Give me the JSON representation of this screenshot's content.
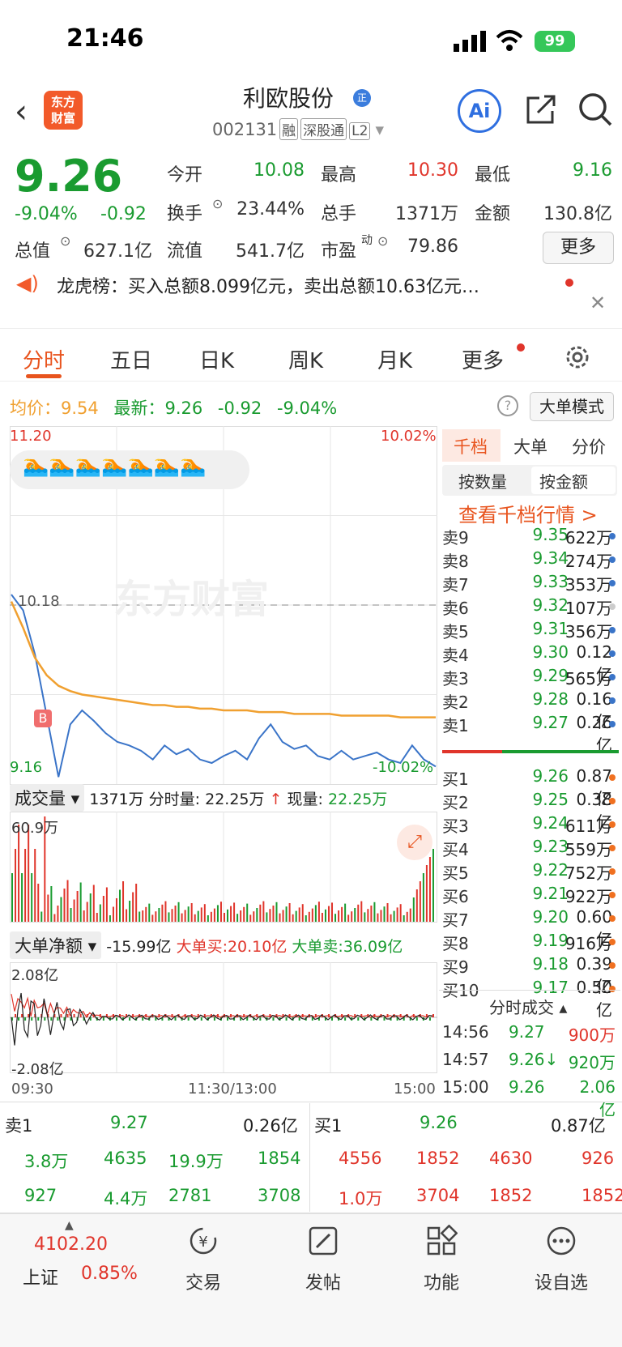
{
  "status": {
    "time": "21:46",
    "battery": "99"
  },
  "header": {
    "logo_line1": "东方",
    "logo_line2": "财富",
    "title": "利欧股份",
    "title_badge": "正",
    "code": "002131",
    "tags": [
      "融",
      "深股通",
      "L2"
    ],
    "ai_label": "Ai"
  },
  "quote": {
    "price": "9.26",
    "change_pct": "-9.04%",
    "change": "-0.92",
    "open_label": "今开",
    "open": "10.08",
    "high_label": "最高",
    "high": "10.30",
    "low_label": "最低",
    "low": "9.16",
    "turnover_label": "换手",
    "turnover": "23.44%",
    "volume_label": "总手",
    "volume": "1371万",
    "amount_label": "金额",
    "amount": "130.8亿",
    "mcap_label": "总值",
    "mcap": "627.1亿",
    "float_label": "流值",
    "float": "541.7亿",
    "pe_label": "市盈",
    "pe_sup": "动",
    "pe": "79.86",
    "more": "更多"
  },
  "notice": {
    "text": "龙虎榜：买入总额8.099亿元，卖出总额10.63亿元…"
  },
  "tabs": [
    "分时",
    "五日",
    "日K",
    "周K",
    "月K",
    "更多"
  ],
  "avg_line": {
    "avg_label": "均价：",
    "avg": "9.54",
    "latest_label": "最新：",
    "latest": "9.26",
    "chg": "-0.92",
    "pct": "-9.04%"
  },
  "big_mode": "大单模式",
  "chart_data": {
    "type": "line",
    "y_max_label": "11.20",
    "y_max_pct": "10.02%",
    "y_min_label": "9.16",
    "y_min_pct": "-10.02%",
    "ref_label": "10.18",
    "x_labels": [
      "09:30",
      "11:30/13:00",
      "15:00"
    ],
    "watermark": "东方财富",
    "ylim": [
      9.16,
      11.2
    ],
    "series": [
      {
        "name": "price",
        "color": "#3a74c8",
        "values": [
          10.24,
          10.15,
          9.9,
          9.55,
          9.2,
          9.5,
          9.58,
          9.52,
          9.45,
          9.4,
          9.38,
          9.35,
          9.3,
          9.38,
          9.33,
          9.36,
          9.3,
          9.28,
          9.32,
          9.35,
          9.3,
          9.42,
          9.5,
          9.4,
          9.36,
          9.38,
          9.32,
          9.3,
          9.35,
          9.3,
          9.32,
          9.34,
          9.3,
          9.28,
          9.38,
          9.3,
          9.26
        ]
      },
      {
        "name": "avg",
        "color": "#f0a030",
        "values": [
          10.2,
          10.05,
          9.88,
          9.78,
          9.72,
          9.69,
          9.67,
          9.66,
          9.65,
          9.64,
          9.63,
          9.62,
          9.61,
          9.61,
          9.6,
          9.6,
          9.59,
          9.59,
          9.58,
          9.58,
          9.58,
          9.57,
          9.57,
          9.57,
          9.56,
          9.56,
          9.56,
          9.56,
          9.55,
          9.55,
          9.55,
          9.55,
          9.55,
          9.54,
          9.54,
          9.54,
          9.54
        ]
      }
    ]
  },
  "volume": {
    "label": "成交量",
    "total": "1371万",
    "minute_label": "分时量:",
    "minute": "22.25万",
    "now_label": "现量:",
    "now": "22.25万",
    "max_label": "60.9万"
  },
  "bigorder": {
    "label": "大单净额",
    "net": "-15.99亿",
    "buy_label": "大单买:",
    "buy": "20.10亿",
    "sell_label": "大单卖:",
    "sell": "36.09亿",
    "max_label": "2.08亿",
    "min_label": "-2.08亿"
  },
  "orderbook": {
    "tabs": [
      "千档",
      "大单",
      "分价"
    ],
    "seg": [
      "按数量",
      "按金额"
    ],
    "kilo_link": "查看千档行情 >",
    "asks": [
      {
        "label": "卖9",
        "price": "9.35",
        "vol": "622万",
        "dot": "#3a74c8"
      },
      {
        "label": "卖8",
        "price": "9.34",
        "vol": "274万",
        "dot": "#3a74c8"
      },
      {
        "label": "卖7",
        "price": "9.33",
        "vol": "353万",
        "dot": "#3a74c8"
      },
      {
        "label": "卖6",
        "price": "9.32",
        "vol": "107万",
        "dot": "#cccccc"
      },
      {
        "label": "卖5",
        "price": "9.31",
        "vol": "356万",
        "dot": "#3a74c8"
      },
      {
        "label": "卖4",
        "price": "9.30",
        "vol": "0.12亿",
        "dot": "#3a74c8"
      },
      {
        "label": "卖3",
        "price": "9.29",
        "vol": "565万",
        "dot": "#3a74c8"
      },
      {
        "label": "卖2",
        "price": "9.28",
        "vol": "0.16亿",
        "dot": "#3a74c8"
      },
      {
        "label": "卖1",
        "price": "9.27",
        "vol": "0.26亿",
        "dot": "#3a74c8"
      }
    ],
    "bids": [
      {
        "label": "买1",
        "price": "9.26",
        "vol": "0.87亿",
        "dot": "#f07020"
      },
      {
        "label": "买2",
        "price": "9.25",
        "vol": "0.38亿",
        "dot": "#f07020"
      },
      {
        "label": "买3",
        "price": "9.24",
        "vol": "611万",
        "dot": "#f07020"
      },
      {
        "label": "买4",
        "price": "9.23",
        "vol": "559万",
        "dot": "#f07020"
      },
      {
        "label": "买5",
        "price": "9.22",
        "vol": "752万",
        "dot": "#f07020"
      },
      {
        "label": "买6",
        "price": "9.21",
        "vol": "922万",
        "dot": "#f07020"
      },
      {
        "label": "买7",
        "price": "9.20",
        "vol": "0.60亿",
        "dot": "#f07020"
      },
      {
        "label": "买8",
        "price": "9.19",
        "vol": "916万",
        "dot": "#f07020"
      },
      {
        "label": "买9",
        "price": "9.18",
        "vol": "0.39亿",
        "dot": "#f07020"
      },
      {
        "label": "买10",
        "price": "9.17",
        "vol": "0.50亿",
        "dot": "#f07020"
      }
    ],
    "ticks_label": "分时成交",
    "ticks": [
      {
        "time": "14:56",
        "price": "9.27",
        "vol": "900万"
      },
      {
        "time": "14:57",
        "price": "9.26↓",
        "vol": "920万"
      },
      {
        "time": "15:00",
        "price": "9.26",
        "vol": "2.06亿"
      }
    ]
  },
  "lower": {
    "sell_label": "卖1",
    "sell_price": "9.27",
    "sell_vol": "0.26亿",
    "buy_label": "买1",
    "buy_price": "9.26",
    "buy_vol": "0.87亿",
    "sell_rows": [
      [
        "3.8万",
        "4635",
        "19.9万",
        "1854"
      ],
      [
        "927",
        "4.4万",
        "2781",
        "3708"
      ]
    ],
    "buy_rows": [
      [
        "4556",
        "1852",
        "4630",
        "926"
      ],
      [
        "1.0万",
        "3704",
        "1852",
        "1852"
      ]
    ]
  },
  "nav": {
    "index_value": "4102.20",
    "index_name": "上证",
    "index_pct": "0.85%",
    "items": [
      "交易",
      "发帖",
      "功能",
      "设自选"
    ]
  }
}
